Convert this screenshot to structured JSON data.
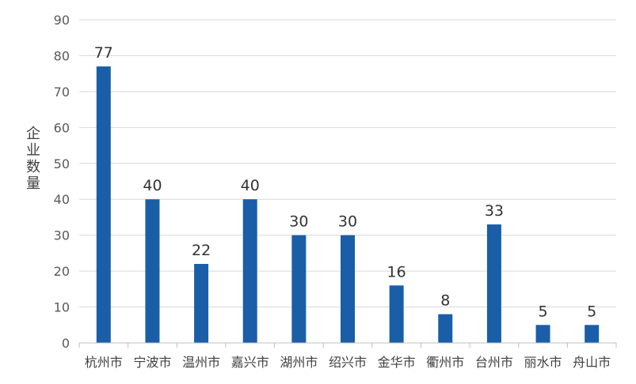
{
  "chart_data": {
    "type": "bar",
    "title": "",
    "xlabel": "",
    "ylabel": "企业数量",
    "ylim": [
      0,
      90
    ],
    "yticks": [
      0,
      10,
      20,
      30,
      40,
      50,
      60,
      70,
      80,
      90
    ],
    "grid": true,
    "legend": "none",
    "categories": [
      "杭州市",
      "宁波市",
      "温州市",
      "嘉兴市",
      "湖州市",
      "绍兴市",
      "金华市",
      "衢州市",
      "台州市",
      "丽水市",
      "舟山市"
    ],
    "values": [
      77,
      40,
      22,
      40,
      30,
      30,
      16,
      8,
      33,
      5,
      5
    ],
    "bar_color": "#1a5ea8"
  }
}
